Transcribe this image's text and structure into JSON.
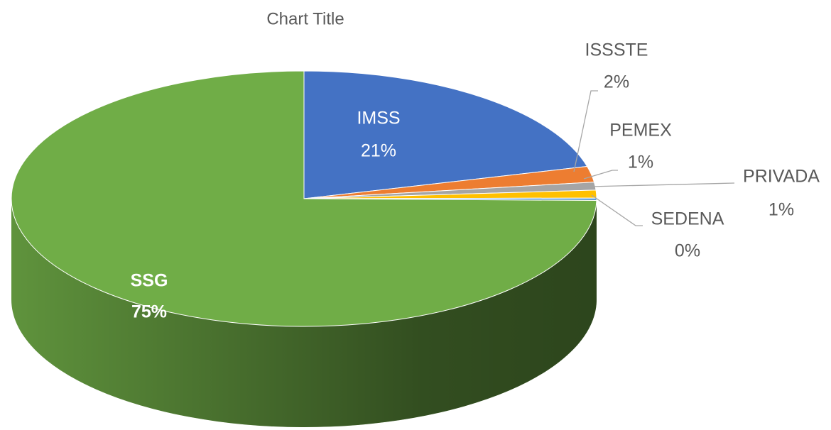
{
  "chart_data": {
    "type": "pie",
    "title": "Chart Title",
    "categories": [
      "IMSS",
      "ISSSTE",
      "PEMEX",
      "PRIVADA",
      "SEDENA",
      "SSG"
    ],
    "values": [
      21,
      2,
      1,
      1,
      0.3,
      75
    ],
    "value_labels": [
      "21%",
      "2%",
      "1%",
      "1%",
      "0%",
      "75%"
    ],
    "colors": [
      "#4472c4",
      "#ed7d31",
      "#a5a5a5",
      "#ffc000",
      "#5b9bd5",
      "#70ad47"
    ]
  }
}
